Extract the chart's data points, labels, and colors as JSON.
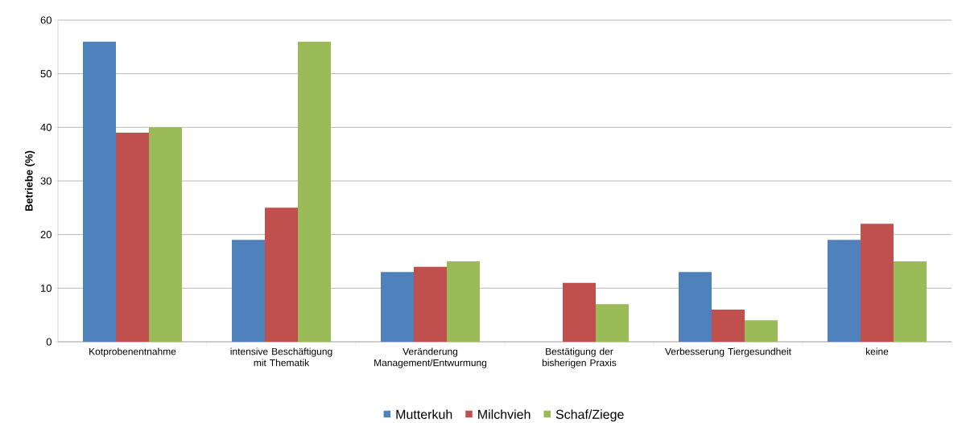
{
  "chart_data": {
    "type": "bar",
    "ylabel": "Betriebe (%)",
    "categories": [
      "Kotprobenentnahme",
      "intensive Beschäftigung mit Thematik",
      "Veränderung Management/Entwurmung",
      "Bestätigung der bisherigen Praxis",
      "Verbesserung Tiergesundheit",
      "keine"
    ],
    "series": [
      {
        "name": "Mutterkuh",
        "color": "#4f81bd",
        "values": [
          56,
          19,
          13,
          0,
          13,
          19
        ]
      },
      {
        "name": "Milchvieh",
        "color": "#c0504d",
        "values": [
          39,
          25,
          14,
          11,
          6,
          22
        ]
      },
      {
        "name": "Schaf/Ziege",
        "color": "#9bbb59",
        "values": [
          40,
          56,
          15,
          7,
          4,
          15
        ]
      }
    ],
    "ylim": [
      0,
      60
    ],
    "yticks": [
      0,
      10,
      20,
      30,
      40,
      50,
      60
    ],
    "grid": "y",
    "legend": "bottom"
  }
}
